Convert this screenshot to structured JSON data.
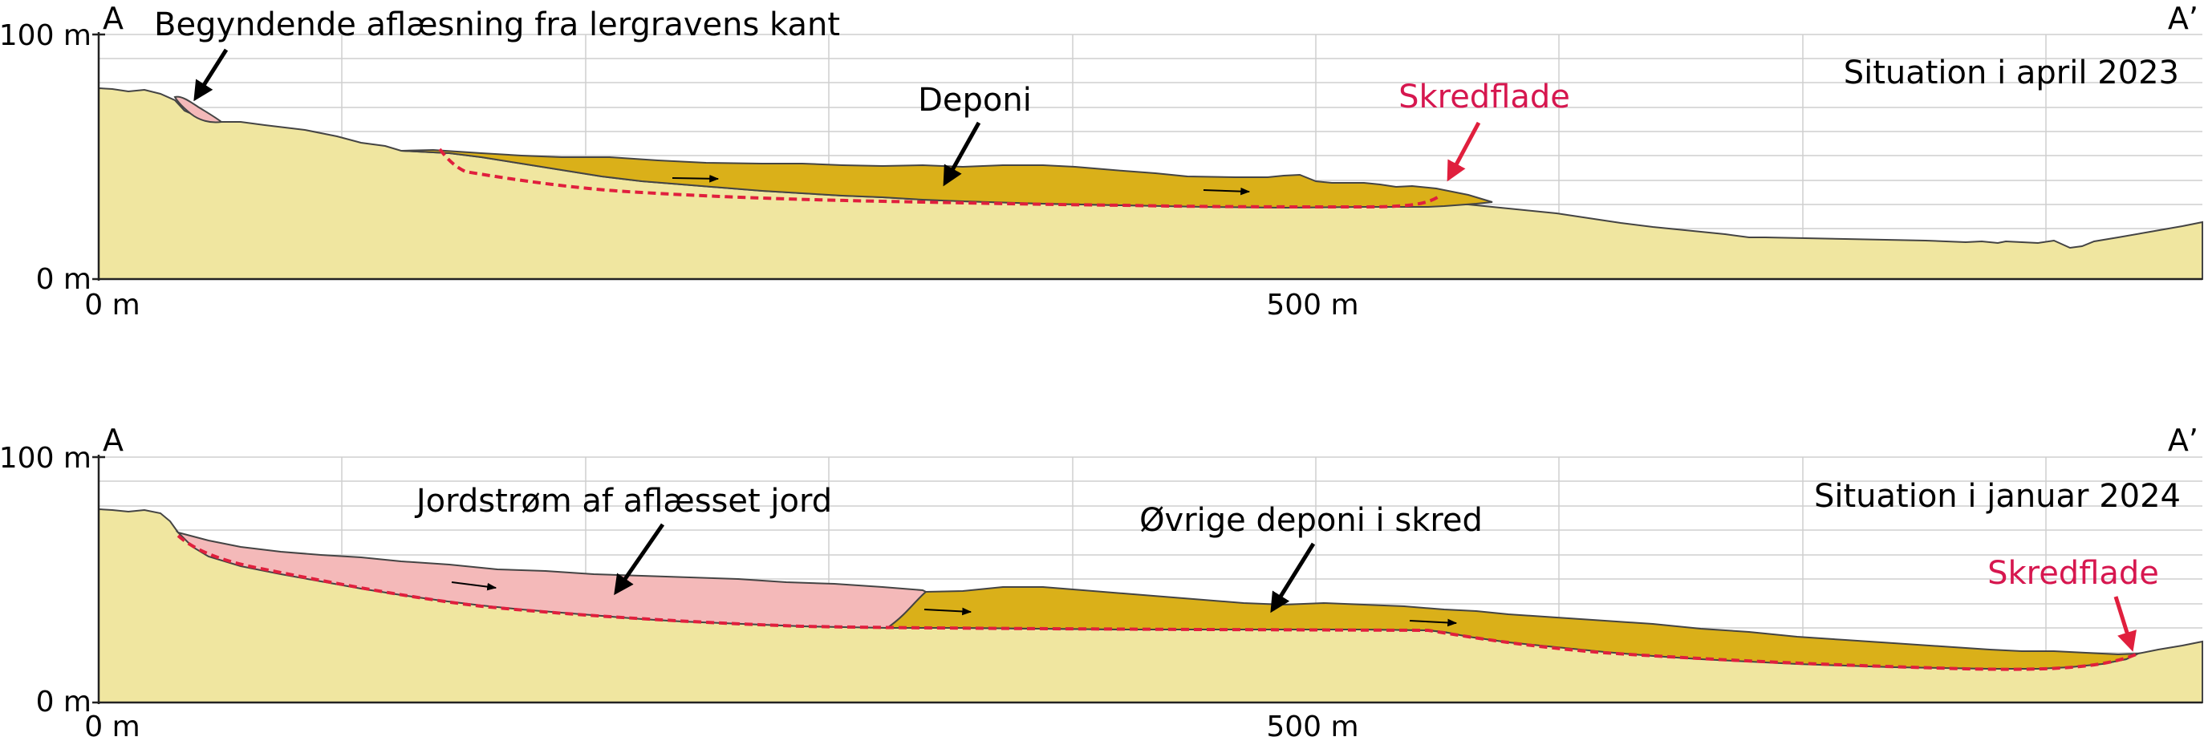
{
  "colors": {
    "terrain": "#f0e6a0",
    "deposit": "#dab019",
    "earthflow": "#f4b9b9",
    "slip_surface": "#e01f3d",
    "gridline": "#cfcfcf",
    "outline": "#444444"
  },
  "panels": [
    {
      "id": "april-2023",
      "title": "Situation i april 2023",
      "label_start": "A",
      "label_end": "A’",
      "y_label_top": "100 m",
      "y_label_bottom": "0 m",
      "x_label_start": "0 m",
      "x_label_mid": "500 m",
      "annotations": {
        "initial_unloading": "Begyndende aflæsning fra lergravens kant",
        "deposit": "Deponi",
        "slip_surface": "Skredflade"
      }
    },
    {
      "id": "january-2024",
      "title": "Situation i januar 2024",
      "label_start": "A",
      "label_end": "A’",
      "y_label_top": "100 m",
      "y_label_bottom": "0 m",
      "x_label_start": "0 m",
      "x_label_mid": "500 m",
      "annotations": {
        "earthflow": "Jordstrøm af aflæsset jord",
        "remaining_deposit": "Øvrige deponi i skred",
        "slip_surface": "Skredflade"
      }
    }
  ]
}
